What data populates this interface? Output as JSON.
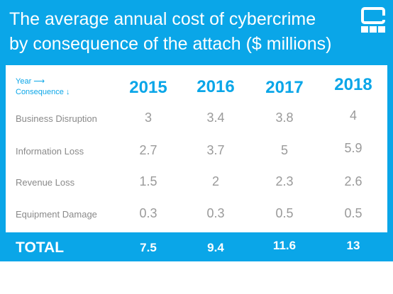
{
  "title_lines": [
    "The average annual cost of cybercrime",
    "by consequence of the attach ($ millions)"
  ],
  "corner": {
    "year_label": "Year ⟶",
    "consequence_label": "Consequence ↓"
  },
  "colors": {
    "accent": "#0aa6e8",
    "text_gray": "#9a9a9a",
    "white": "#ffffff"
  },
  "logo_icon": "brand-logo-icon",
  "total_label": "TOTAL",
  "chart_data": {
    "type": "table",
    "title": "The average annual cost of cybercrime by consequence of the attach ($ millions)",
    "columns": [
      "2015",
      "2016",
      "2017",
      "2018"
    ],
    "rows": [
      {
        "label": "Business Disruption",
        "values": [
          "3",
          "3.4",
          "3.8",
          "4"
        ]
      },
      {
        "label": "Information Loss",
        "values": [
          "2.7",
          "3.7",
          "5",
          "5.9"
        ]
      },
      {
        "label": "Revenue Loss",
        "values": [
          "1.5",
          "2",
          "2.3",
          "2.6"
        ]
      },
      {
        "label": "Equipment Damage",
        "values": [
          "0.3",
          "0.3",
          "0.5",
          "0.5"
        ]
      }
    ],
    "totals": [
      "7.5",
      "9.4",
      "11.6",
      "13"
    ]
  }
}
